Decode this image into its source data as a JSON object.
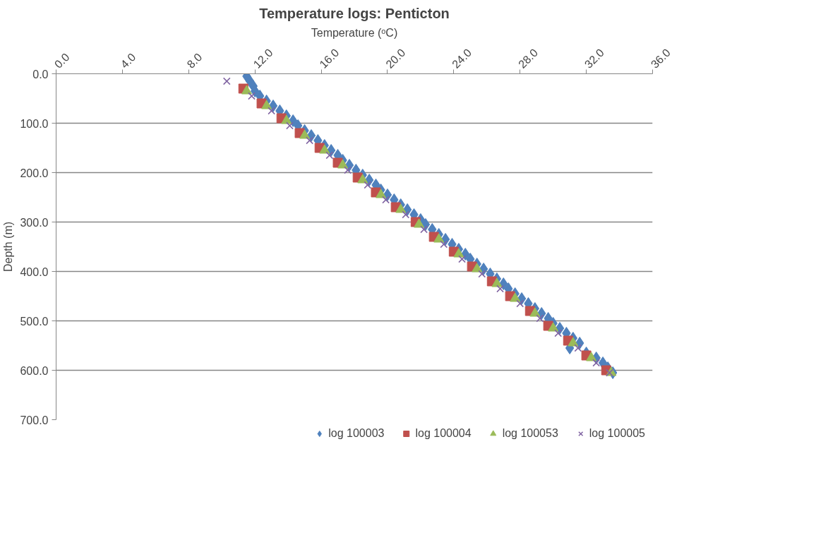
{
  "chart_data": {
    "type": "scatter",
    "title": "Temperature logs: Penticton",
    "xlabel": "Temperature (ᵒC)",
    "ylabel": "Depth (m)",
    "xlim": [
      0,
      36
    ],
    "ylim": [
      700,
      0
    ],
    "xticks": [
      {
        "value": 0,
        "label": "0.0"
      },
      {
        "value": 4,
        "label": "4.0"
      },
      {
        "value": 8,
        "label": "8.0"
      },
      {
        "value": 12,
        "label": "12.0"
      },
      {
        "value": 16,
        "label": "16.0"
      },
      {
        "value": 20,
        "label": "20.0"
      },
      {
        "value": 24,
        "label": "24.0"
      },
      {
        "value": 28,
        "label": "28.0"
      },
      {
        "value": 32,
        "label": "32.0"
      },
      {
        "value": 36,
        "label": "36.0"
      }
    ],
    "yticks": [
      {
        "value": 0,
        "label": "0.0"
      },
      {
        "value": 100,
        "label": "100.0"
      },
      {
        "value": 200,
        "label": "200.0"
      },
      {
        "value": 300,
        "label": "300.0"
      },
      {
        "value": 400,
        "label": "400.0"
      },
      {
        "value": 500,
        "label": "500.0"
      },
      {
        "value": 600,
        "label": "600.0"
      },
      {
        "value": 700,
        "label": "700.0"
      }
    ],
    "grid": "y",
    "legend": "bottom",
    "series": [
      {
        "name": "log 100003",
        "color": "#4f81bd",
        "marker": "diamond",
        "x": [
          11.5,
          11.7,
          11.9,
          12.0,
          12.3,
          12.7,
          13.1,
          13.5,
          13.9,
          14.3,
          14.6,
          15.0,
          15.4,
          15.8,
          16.2,
          16.6,
          17.0,
          17.3,
          17.7,
          18.1,
          18.5,
          18.9,
          19.3,
          19.6,
          20.0,
          20.4,
          20.8,
          21.2,
          21.6,
          22.0,
          22.3,
          22.7,
          23.1,
          23.5,
          23.9,
          24.3,
          24.7,
          25.0,
          25.4,
          25.8,
          26.2,
          26.6,
          27.0,
          27.3,
          27.7,
          28.1,
          28.5,
          28.9,
          29.3,
          29.7,
          30.0,
          30.4,
          30.8,
          31.2,
          31.6,
          31.0,
          32.0,
          32.6,
          33.0,
          33.3,
          33.6
        ],
        "values": [
          5,
          15,
          25,
          35,
          45,
          55,
          65,
          75,
          85,
          95,
          105,
          115,
          125,
          135,
          145,
          155,
          165,
          175,
          185,
          195,
          205,
          215,
          225,
          235,
          245,
          255,
          265,
          275,
          285,
          295,
          305,
          315,
          325,
          335,
          345,
          355,
          365,
          375,
          385,
          395,
          405,
          415,
          425,
          435,
          445,
          455,
          465,
          475,
          485,
          495,
          505,
          515,
          525,
          535,
          545,
          555,
          565,
          575,
          585,
          595,
          605
        ]
      },
      {
        "name": "log 100004",
        "color": "#c0504d",
        "marker": "square",
        "x": [
          11.3,
          12.4,
          13.6,
          14.7,
          15.9,
          17.0,
          18.2,
          19.3,
          20.5,
          21.7,
          22.8,
          24.0,
          25.1,
          26.3,
          27.4,
          28.6,
          29.7,
          30.9,
          32.0,
          33.2
        ],
        "values": [
          30,
          60,
          90,
          120,
          150,
          180,
          210,
          240,
          270,
          300,
          330,
          360,
          390,
          420,
          450,
          480,
          510,
          540,
          570,
          600
        ]
      },
      {
        "name": "log 100053",
        "color": "#9bbb59",
        "marker": "triangle",
        "x": [
          11.5,
          12.7,
          13.9,
          15.0,
          16.2,
          17.3,
          18.5,
          19.6,
          20.8,
          21.9,
          23.1,
          24.3,
          25.4,
          26.6,
          27.7,
          28.9,
          30.0,
          31.2,
          32.3,
          33.5
        ],
        "values": [
          35,
          65,
          95,
          125,
          155,
          185,
          215,
          245,
          275,
          305,
          335,
          365,
          395,
          425,
          455,
          485,
          515,
          545,
          575,
          605
        ]
      },
      {
        "name": "log 100005",
        "color": "#8064a2",
        "marker": "cross",
        "x": [
          10.3,
          11.8,
          13.0,
          14.1,
          15.3,
          16.5,
          17.6,
          18.8,
          19.9,
          21.1,
          22.2,
          23.4,
          24.5,
          25.7,
          26.8,
          28.0,
          29.2,
          30.3,
          31.5,
          32.6,
          33.4
        ],
        "values": [
          15,
          45,
          75,
          105,
          135,
          165,
          195,
          225,
          255,
          285,
          315,
          345,
          375,
          405,
          435,
          465,
          495,
          525,
          555,
          585,
          605
        ]
      }
    ]
  }
}
